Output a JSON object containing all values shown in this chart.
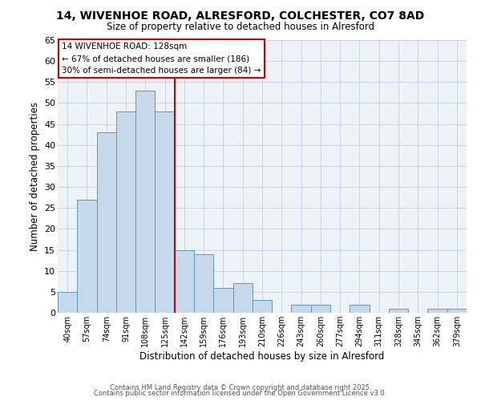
{
  "title": "14, WIVENHOE ROAD, ALRESFORD, COLCHESTER, CO7 8AD",
  "subtitle": "Size of property relative to detached houses in Alresford",
  "xlabel": "Distribution of detached houses by size in Alresford",
  "ylabel": "Number of detached properties",
  "bar_color": "#c5d9ea",
  "bar_edge_color": "#5a9ac8",
  "grid_color": "#c8d4e0",
  "background_color": "#edf2f7",
  "annotation_box_color": "#cc0000",
  "vline_color": "#cc0000",
  "annotation_text": "14 WIVENHOE ROAD: 128sqm\n← 67% of detached houses are smaller (186)\n30% of semi-detached houses are larger (84) →",
  "categories": [
    "40sqm",
    "57sqm",
    "74sqm",
    "91sqm",
    "108sqm",
    "125sqm",
    "142sqm",
    "159sqm",
    "176sqm",
    "193sqm",
    "210sqm",
    "226sqm",
    "243sqm",
    "260sqm",
    "277sqm",
    "294sqm",
    "311sqm",
    "328sqm",
    "345sqm",
    "362sqm",
    "379sqm"
  ],
  "values": [
    5,
    27,
    43,
    48,
    53,
    48,
    15,
    14,
    6,
    7,
    3,
    0,
    2,
    2,
    0,
    2,
    0,
    1,
    0,
    1,
    1
  ],
  "ylim": [
    0,
    65
  ],
  "yticks": [
    0,
    5,
    10,
    15,
    20,
    25,
    30,
    35,
    40,
    45,
    50,
    55,
    60,
    65
  ],
  "vline_index": 5,
  "footer_line1": "Contains HM Land Registry data © Crown copyright and database right 2025.",
  "footer_line2": "Contains public sector information licensed under the Open Government Licence v3.0.",
  "figsize": [
    6.0,
    5.0
  ],
  "dpi": 100
}
